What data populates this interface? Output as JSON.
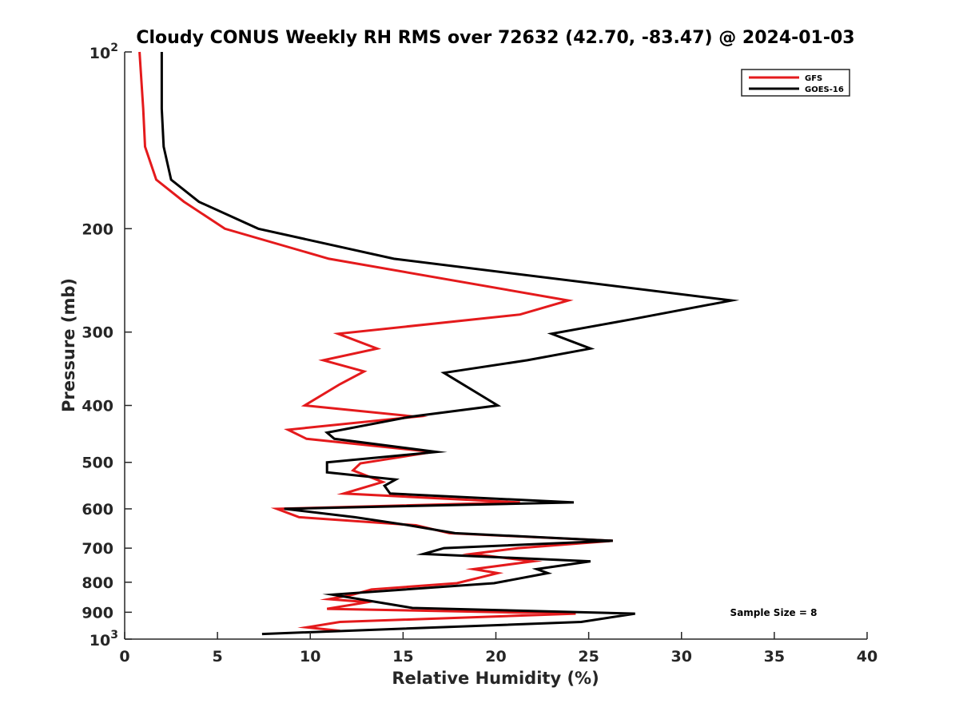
{
  "chart_data": {
    "type": "line",
    "title": "Cloudy CONUS Weekly RH RMS over 72632 (42.70, -83.47) @ 2024-01-03",
    "xlabel": "Relative Humidity (%)",
    "ylabel": "Pressure (mb)",
    "xlim": [
      0,
      40
    ],
    "ylim": [
      100,
      1000
    ],
    "y_scale": "log",
    "y_reversed": true,
    "grid": false,
    "legend_position": "top-right",
    "x_ticks": [
      0,
      5,
      10,
      15,
      20,
      25,
      30,
      35,
      40
    ],
    "y_ticks": [
      {
        "value": 100,
        "base": "10",
        "exp": "2"
      },
      {
        "value": 200,
        "label": "200"
      },
      {
        "value": 300,
        "label": "300"
      },
      {
        "value": 400,
        "label": "400"
      },
      {
        "value": 500,
        "label": "500"
      },
      {
        "value": 600,
        "label": "600"
      },
      {
        "value": 700,
        "label": "700"
      },
      {
        "value": 800,
        "label": "800"
      },
      {
        "value": 900,
        "label": "900"
      },
      {
        "value": 1000,
        "base": "10",
        "exp": "3"
      }
    ],
    "annotation": "Sample Size = 8",
    "series": [
      {
        "name": "GFS",
        "color": "#e41a1c",
        "points": [
          [
            0.8,
            100
          ],
          [
            1.0,
            125
          ],
          [
            1.1,
            145
          ],
          [
            1.7,
            165
          ],
          [
            3.2,
            180
          ],
          [
            5.4,
            200
          ],
          [
            11.0,
            225
          ],
          [
            23.9,
            265
          ],
          [
            21.3,
            280
          ],
          [
            11.5,
            302
          ],
          [
            13.6,
            320
          ],
          [
            10.7,
            335
          ],
          [
            12.9,
            350
          ],
          [
            11.6,
            368
          ],
          [
            9.7,
            400
          ],
          [
            15.7,
            418
          ],
          [
            8.8,
            440
          ],
          [
            9.8,
            456
          ],
          [
            16.6,
            480
          ],
          [
            12.7,
            502
          ],
          [
            12.3,
            516
          ],
          [
            13.9,
            540
          ],
          [
            11.8,
            565
          ],
          [
            21.3,
            585
          ],
          [
            8.2,
            600
          ],
          [
            9.4,
            620
          ],
          [
            15.7,
            640
          ],
          [
            17.5,
            660
          ],
          [
            26.3,
            680
          ],
          [
            21.2,
            700
          ],
          [
            18.7,
            716
          ],
          [
            22.0,
            737
          ],
          [
            18.8,
            760
          ],
          [
            20.1,
            772
          ],
          [
            17.9,
            803
          ],
          [
            13.3,
            823
          ],
          [
            12.3,
            840
          ],
          [
            11.0,
            855
          ],
          [
            13.1,
            865
          ],
          [
            10.9,
            888
          ],
          [
            24.3,
            905
          ],
          [
            11.6,
            935
          ],
          [
            9.8,
            955
          ],
          [
            11.6,
            968
          ]
        ]
      },
      {
        "name": "GOES-16",
        "color": "#000000",
        "points": [
          [
            2.0,
            100
          ],
          [
            2.0,
            125
          ],
          [
            2.1,
            145
          ],
          [
            2.5,
            165
          ],
          [
            4.0,
            180
          ],
          [
            7.2,
            200
          ],
          [
            14.5,
            225
          ],
          [
            32.7,
            265
          ],
          [
            27.4,
            285
          ],
          [
            23.0,
            302
          ],
          [
            25.1,
            320
          ],
          [
            21.7,
            335
          ],
          [
            17.2,
            352
          ],
          [
            20.1,
            400
          ],
          [
            15.4,
            418
          ],
          [
            10.9,
            445
          ],
          [
            11.3,
            456
          ],
          [
            16.8,
            480
          ],
          [
            10.9,
            500
          ],
          [
            10.9,
            520
          ],
          [
            14.6,
            535
          ],
          [
            14.0,
            548
          ],
          [
            14.3,
            565
          ],
          [
            24.2,
            585
          ],
          [
            8.6,
            600
          ],
          [
            12.4,
            620
          ],
          [
            15.3,
            640
          ],
          [
            17.8,
            660
          ],
          [
            26.3,
            680
          ],
          [
            17.2,
            700
          ],
          [
            16.1,
            716
          ],
          [
            25.1,
            737
          ],
          [
            22.2,
            760
          ],
          [
            22.8,
            772
          ],
          [
            19.9,
            803
          ],
          [
            11.2,
            840
          ],
          [
            15.5,
            885
          ],
          [
            27.5,
            905
          ],
          [
            24.6,
            935
          ],
          [
            7.4,
            980
          ]
        ]
      }
    ]
  }
}
